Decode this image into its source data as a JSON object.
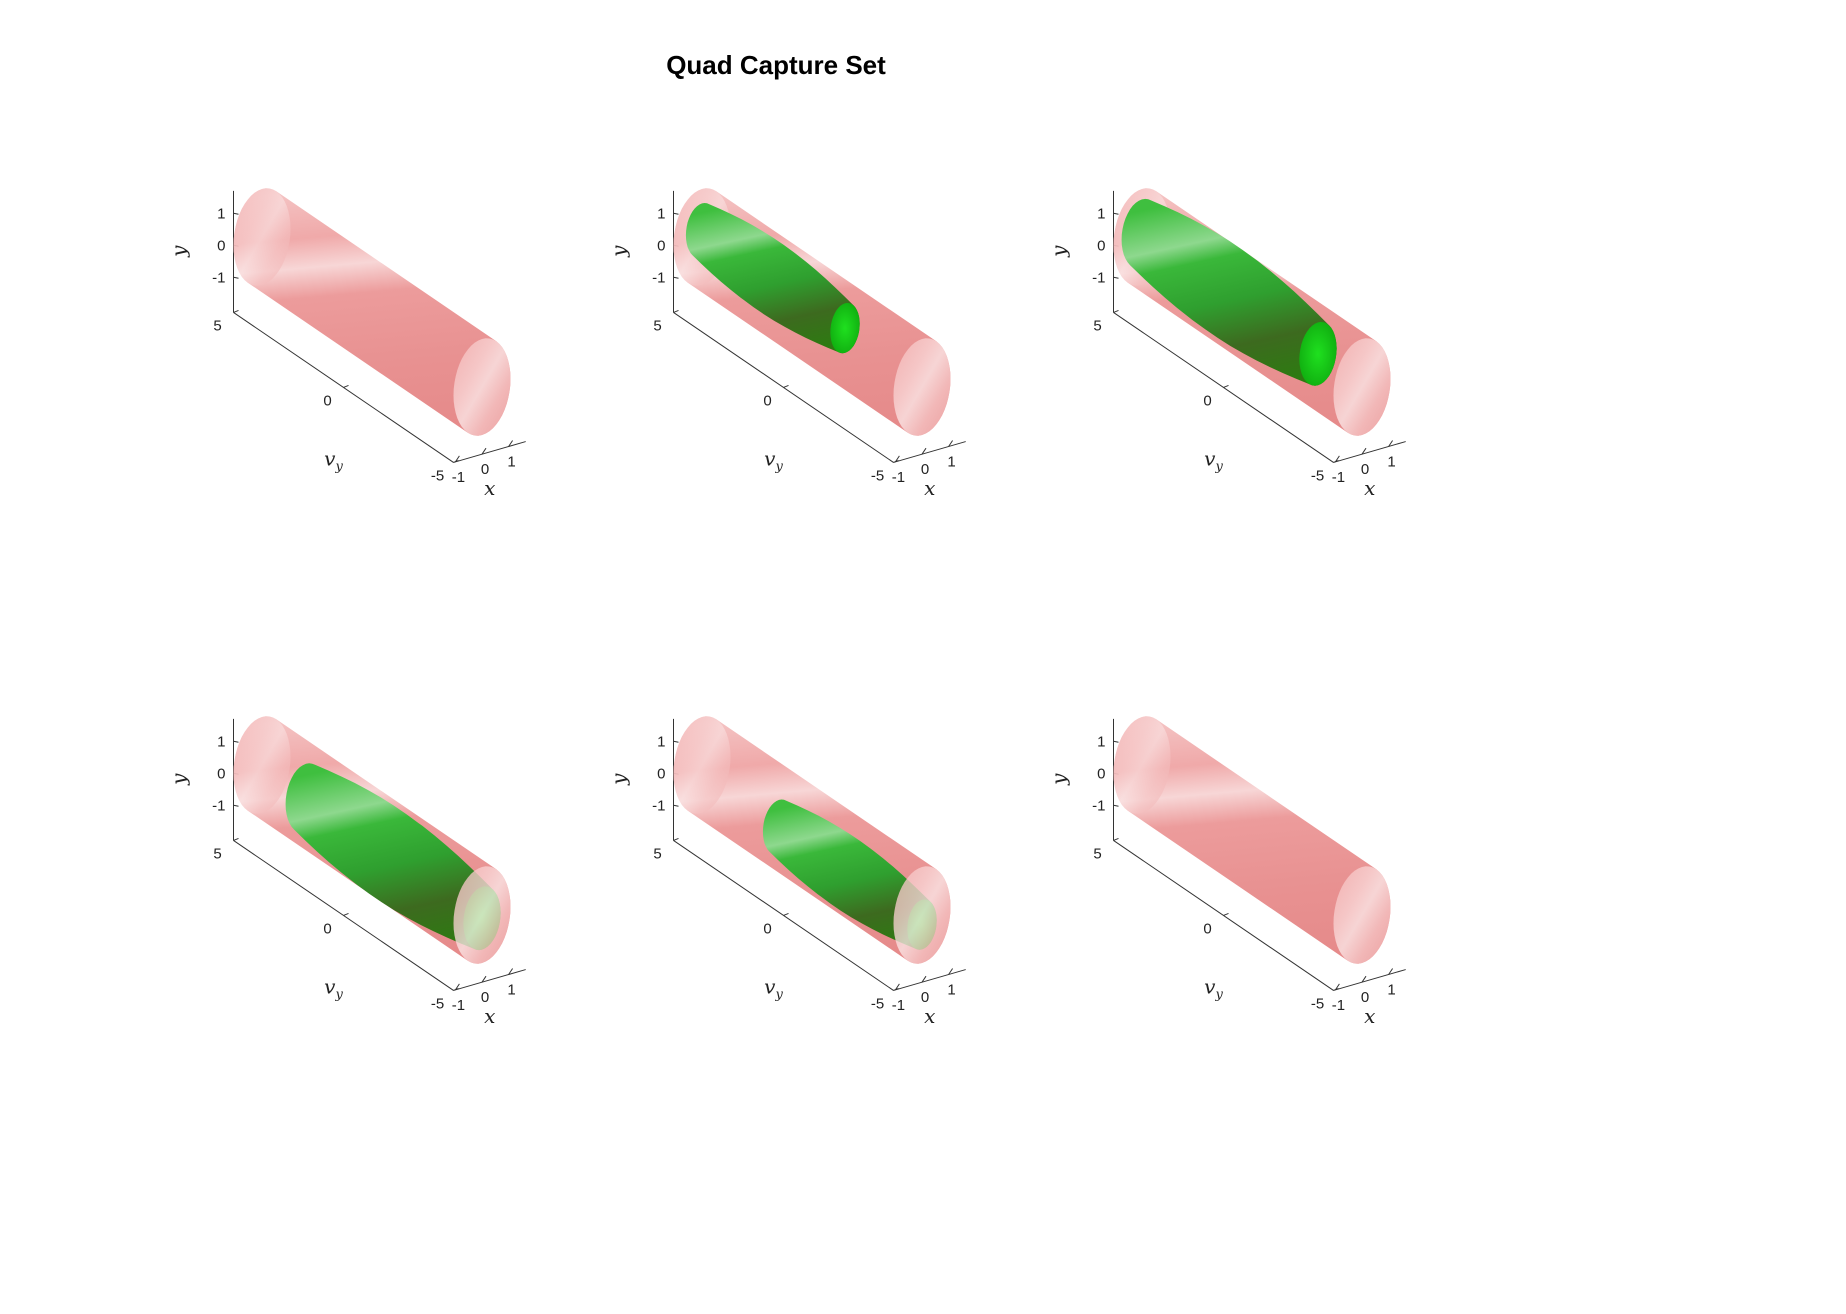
{
  "figure": {
    "title": "Quad Capture Set"
  },
  "chart_data": [
    {
      "type": "3d-surface",
      "panel": 1,
      "xlabel": "x",
      "ylabel": "v_y",
      "zlabel": "y",
      "xticks": [
        "-1",
        "0",
        "1"
      ],
      "yticks": [
        "5",
        "0",
        "-5"
      ],
      "zticks": [
        "1",
        "0",
        "-1"
      ],
      "xlim": [
        -1.5,
        1.5
      ],
      "ylim": [
        -5,
        5
      ],
      "zlim": [
        -1.5,
        1.5
      ],
      "surfaces": [
        {
          "kind": "obstacle-cylinder",
          "color": "#e88585"
        }
      ]
    },
    {
      "type": "3d-surface",
      "panel": 2,
      "xlabel": "x",
      "ylabel": "v_y",
      "zlabel": "y",
      "xticks": [
        "-1",
        "0",
        "1"
      ],
      "yticks": [
        "5",
        "0",
        "-5"
      ],
      "zticks": [
        "1",
        "0",
        "-1"
      ],
      "xlim": [
        -1.5,
        1.5
      ],
      "ylim": [
        -5,
        5
      ],
      "zlim": [
        -1.5,
        1.5
      ],
      "surfaces": [
        {
          "kind": "obstacle-cylinder",
          "color": "#e88585"
        },
        {
          "kind": "capture-set",
          "color": "#22aa22",
          "y_start": 5,
          "y_end": -1.5,
          "z_offset": 0.2,
          "radius_scale": 0.75
        }
      ]
    },
    {
      "type": "3d-surface",
      "panel": 3,
      "xlabel": "x",
      "ylabel": "v_y",
      "zlabel": "y",
      "xticks": [
        "-1",
        "0",
        "1"
      ],
      "yticks": [
        "5",
        "0",
        "-5"
      ],
      "zticks": [
        "1",
        "0",
        "-1"
      ],
      "xlim": [
        -1.5,
        1.5
      ],
      "ylim": [
        -5,
        5
      ],
      "zlim": [
        -1.5,
        1.5
      ],
      "surfaces": [
        {
          "kind": "obstacle-cylinder",
          "color": "#e88585"
        },
        {
          "kind": "capture-set",
          "color": "#22aa22",
          "y_start": 5,
          "y_end": -3,
          "z_offset": 0.1,
          "radius_scale": 0.95
        }
      ]
    },
    {
      "type": "3d-surface",
      "panel": 4,
      "xlabel": "x",
      "ylabel": "v_y",
      "zlabel": "y",
      "xticks": [
        "-1",
        "0",
        "1"
      ],
      "yticks": [
        "5",
        "0",
        "-5"
      ],
      "zticks": [
        "1",
        "0",
        "-1"
      ],
      "xlim": [
        -1.5,
        1.5
      ],
      "ylim": [
        -5,
        5
      ],
      "zlim": [
        -1.5,
        1.5
      ],
      "surfaces": [
        {
          "kind": "obstacle-cylinder",
          "color": "#e88585"
        },
        {
          "kind": "capture-set",
          "color": "#22aa22",
          "y_start": 3,
          "y_end": -5,
          "z_offset": -0.1,
          "radius_scale": 0.95
        }
      ]
    },
    {
      "type": "3d-surface",
      "panel": 5,
      "xlabel": "x",
      "ylabel": "v_y",
      "zlabel": "y",
      "xticks": [
        "-1",
        "0",
        "1"
      ],
      "yticks": [
        "5",
        "0",
        "-5"
      ],
      "zticks": [
        "1",
        "0",
        "-1"
      ],
      "xlim": [
        -1.5,
        1.5
      ],
      "ylim": [
        -5,
        5
      ],
      "zlim": [
        -1.5,
        1.5
      ],
      "surfaces": [
        {
          "kind": "obstacle-cylinder",
          "color": "#e88585"
        },
        {
          "kind": "capture-set",
          "color": "#22aa22",
          "y_start": 1.5,
          "y_end": -5,
          "z_offset": -0.3,
          "radius_scale": 0.75
        }
      ]
    },
    {
      "type": "3d-surface",
      "panel": 6,
      "xlabel": "x",
      "ylabel": "v_y",
      "zlabel": "y",
      "xticks": [
        "-1",
        "0",
        "1"
      ],
      "yticks": [
        "5",
        "0",
        "-5"
      ],
      "zticks": [
        "1",
        "0",
        "-1"
      ],
      "xlim": [
        -1.5,
        1.5
      ],
      "ylim": [
        -5,
        5
      ],
      "zlim": [
        -1.5,
        1.5
      ],
      "surfaces": [
        {
          "kind": "obstacle-cylinder",
          "color": "#e88585"
        }
      ]
    }
  ]
}
